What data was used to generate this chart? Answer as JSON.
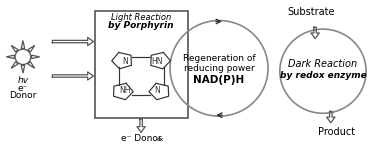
{
  "bg_color": "#ffffff",
  "light_reaction_label1": "Light Reaction",
  "light_reaction_label2": "by Porphyrin",
  "dark_reaction_label1": "Dark Reaction",
  "dark_reaction_label2": "by redox enzyme",
  "regen_label1": "Regeneration of",
  "regen_label2": "reducing power",
  "regen_label3": "NAD(P)H",
  "substrate_label": "Substrate",
  "product_label": "Product",
  "hv_label": "hv",
  "edonor_label": "e⁻\nDonor",
  "edonorox_label": "e⁻ Donor",
  "edonorox_sub": "ox",
  "text_color": "#000000",
  "gray": "#555555",
  "light_gray": "#888888"
}
